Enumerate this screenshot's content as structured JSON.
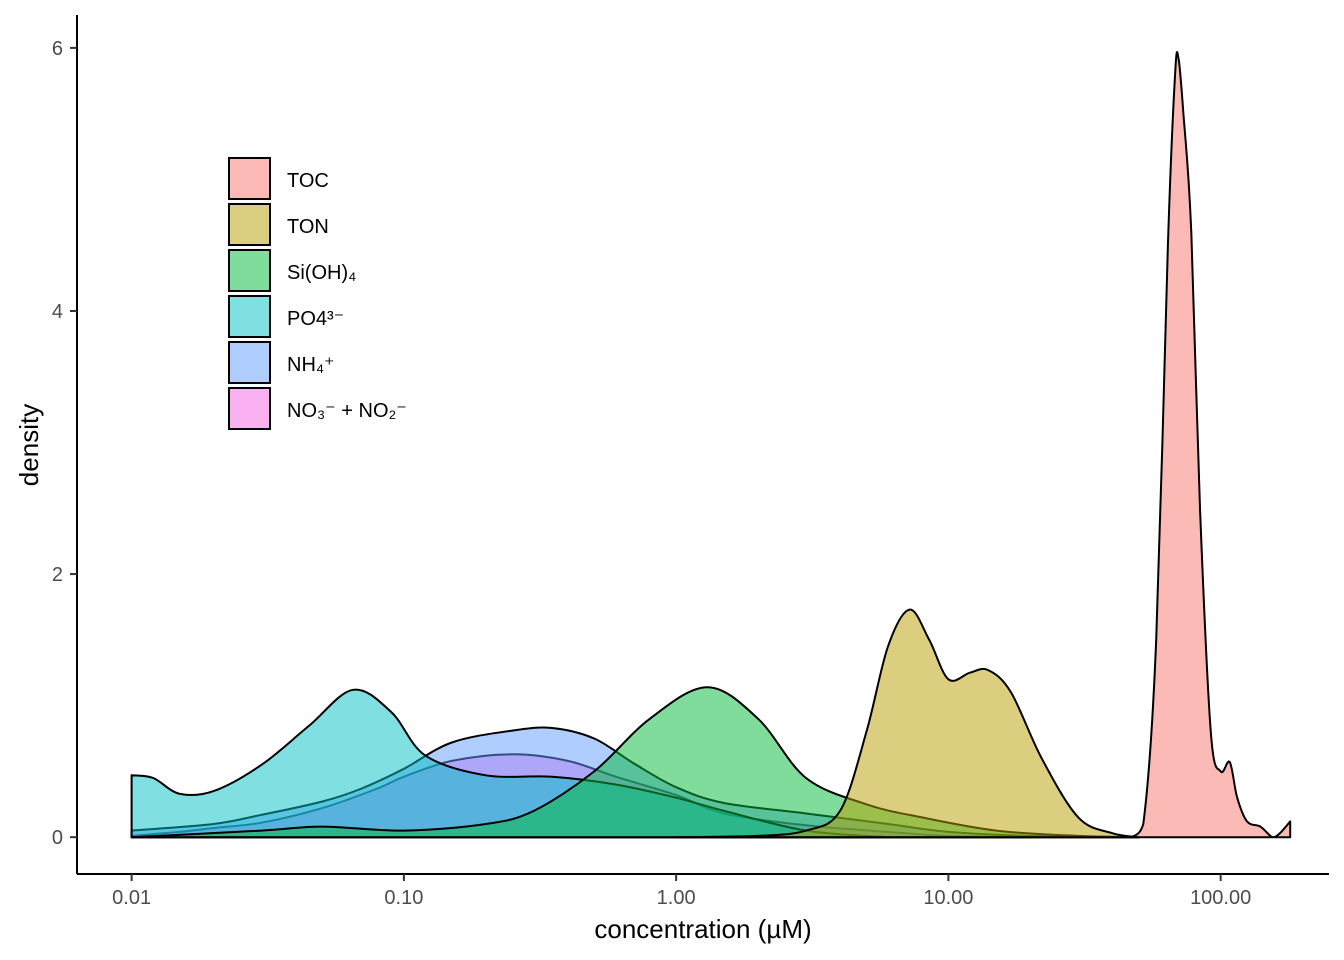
{
  "chart_data": {
    "type": "area",
    "subtype": "density",
    "title": "",
    "xlabel": "concentration (µM)",
    "ylabel": "density",
    "x_scale": "log10",
    "xlim": [
      0.0063,
      250
    ],
    "ylim": [
      -0.28,
      6.25
    ],
    "grid": false,
    "legend_position": "top-left inside",
    "x_ticks": [
      {
        "value": 0.01,
        "label": "0.01"
      },
      {
        "value": 0.1,
        "label": "0.10"
      },
      {
        "value": 1,
        "label": "1.00"
      },
      {
        "value": 10,
        "label": "10.00"
      },
      {
        "value": 100,
        "label": "100.00"
      }
    ],
    "y_ticks": [
      {
        "value": 0,
        "label": "0"
      },
      {
        "value": 2,
        "label": "2"
      },
      {
        "value": 4,
        "label": "4"
      },
      {
        "value": 6,
        "label": "6"
      }
    ],
    "series": [
      {
        "name": "NO₃⁻ + NO₂⁻",
        "color": "#F564E3",
        "points": [
          [
            0.01,
            0.01
          ],
          [
            0.015,
            0.04
          ],
          [
            0.02,
            0.07
          ],
          [
            0.03,
            0.11
          ],
          [
            0.05,
            0.22
          ],
          [
            0.08,
            0.37
          ],
          [
            0.1,
            0.46
          ],
          [
            0.15,
            0.58
          ],
          [
            0.25,
            0.63
          ],
          [
            0.4,
            0.58
          ],
          [
            0.6,
            0.46
          ],
          [
            1,
            0.32
          ],
          [
            1.5,
            0.18
          ],
          [
            3,
            0.09
          ],
          [
            6,
            0.04
          ],
          [
            10,
            0.01
          ],
          [
            20,
            0.0
          ]
        ]
      },
      {
        "name": "NH₄⁺",
        "color": "#619CFF",
        "points": [
          [
            0.01,
            0.05
          ],
          [
            0.02,
            0.1
          ],
          [
            0.03,
            0.17
          ],
          [
            0.05,
            0.27
          ],
          [
            0.07,
            0.37
          ],
          [
            0.1,
            0.52
          ],
          [
            0.15,
            0.72
          ],
          [
            0.25,
            0.81
          ],
          [
            0.35,
            0.83
          ],
          [
            0.5,
            0.75
          ],
          [
            0.7,
            0.56
          ],
          [
            1,
            0.38
          ],
          [
            1.5,
            0.26
          ],
          [
            3,
            0.18
          ],
          [
            6,
            0.1
          ],
          [
            10,
            0.04
          ],
          [
            20,
            0.01
          ],
          [
            50,
            0.0
          ]
        ]
      },
      {
        "name": "PO4³⁻",
        "color": "#00BFC4",
        "points": [
          [
            0.01,
            0.47
          ],
          [
            0.012,
            0.45
          ],
          [
            0.015,
            0.33
          ],
          [
            0.02,
            0.35
          ],
          [
            0.03,
            0.55
          ],
          [
            0.045,
            0.85
          ],
          [
            0.065,
            1.12
          ],
          [
            0.09,
            0.95
          ],
          [
            0.12,
            0.62
          ],
          [
            0.2,
            0.47
          ],
          [
            0.35,
            0.46
          ],
          [
            0.6,
            0.4
          ],
          [
            1,
            0.3
          ],
          [
            1.5,
            0.2
          ],
          [
            3,
            0.05
          ],
          [
            6,
            0.0
          ]
        ]
      },
      {
        "name": "Si(OH)₄",
        "color": "#00BA38",
        "points": [
          [
            0.01,
            0.0
          ],
          [
            0.03,
            0.05
          ],
          [
            0.05,
            0.08
          ],
          [
            0.1,
            0.05
          ],
          [
            0.2,
            0.1
          ],
          [
            0.3,
            0.2
          ],
          [
            0.5,
            0.5
          ],
          [
            0.8,
            0.9
          ],
          [
            1.3,
            1.14
          ],
          [
            2,
            0.9
          ],
          [
            3,
            0.45
          ],
          [
            5,
            0.25
          ],
          [
            8,
            0.15
          ],
          [
            15,
            0.05
          ],
          [
            30,
            0.01
          ],
          [
            50,
            0.0
          ]
        ]
      },
      {
        "name": "TON",
        "color": "#B79F00",
        "points": [
          [
            1,
            0.0
          ],
          [
            2,
            0.01
          ],
          [
            3,
            0.05
          ],
          [
            4,
            0.2
          ],
          [
            5,
            0.8
          ],
          [
            6,
            1.45
          ],
          [
            7.2,
            1.73
          ],
          [
            8.5,
            1.5
          ],
          [
            10,
            1.2
          ],
          [
            12,
            1.25
          ],
          [
            14,
            1.27
          ],
          [
            17,
            1.1
          ],
          [
            22,
            0.6
          ],
          [
            30,
            0.15
          ],
          [
            40,
            0.03
          ],
          [
            50,
            0.0
          ]
        ]
      },
      {
        "name": "TOC",
        "color": "#F8766D",
        "points": [
          [
            47,
            0.0
          ],
          [
            52,
            0.1
          ],
          [
            58,
            1.5
          ],
          [
            64,
            4.5
          ],
          [
            68,
            5.8
          ],
          [
            70,
            5.92
          ],
          [
            73,
            5.5
          ],
          [
            78,
            4.6
          ],
          [
            84,
            2.5
          ],
          [
            92,
            0.8
          ],
          [
            100,
            0.5
          ],
          [
            108,
            0.57
          ],
          [
            115,
            0.3
          ],
          [
            125,
            0.12
          ],
          [
            140,
            0.08
          ],
          [
            155,
            0.0
          ],
          [
            165,
            0.03
          ],
          [
            180,
            0.12
          ]
        ]
      }
    ]
  },
  "legend": {
    "entries": [
      {
        "label": "TOC",
        "color": "#F8766D"
      },
      {
        "label": "TON",
        "color": "#B79F00"
      },
      {
        "label": "Si(OH)₄",
        "color": "#00BA38"
      },
      {
        "label": "PO4³⁻",
        "color": "#00BFC4"
      },
      {
        "label": "NH₄⁺",
        "color": "#619CFF"
      },
      {
        "label": "NO₃⁻ + NO₂⁻",
        "color": "#F564E3"
      }
    ]
  }
}
